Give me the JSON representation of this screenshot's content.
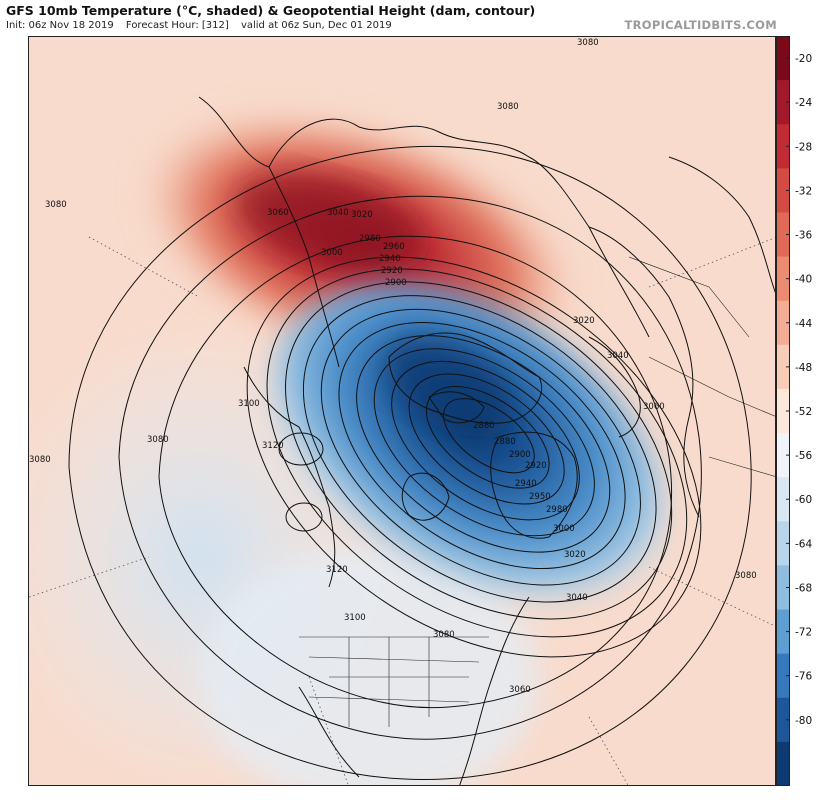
{
  "header": {
    "title": "GFS 10mb Temperature (°C, shaded) & Geopotential Height (dam, contour)",
    "init": "Init: 06z Nov 18 2019",
    "forecast_hour": "Forecast Hour: [312]",
    "valid": "valid at 06z Sun, Dec 01 2019",
    "brand": "TROPICALTIDBITS.COM"
  },
  "colorbar": {
    "ticks": [
      "-20",
      "-24",
      "-28",
      "-32",
      "-36",
      "-40",
      "-44",
      "-48",
      "-52",
      "-56",
      "-60",
      "-64",
      "-68",
      "-72",
      "-76",
      "-80"
    ],
    "colors": [
      "#7a0a1a",
      "#a3182a",
      "#c02b34",
      "#d44a45",
      "#e06a58",
      "#eb8b72",
      "#f3ad94",
      "#f8cdb8",
      "#fbe7dc",
      "#f0f3f7",
      "#d9e7f2",
      "#b8d5ea",
      "#8fbde0",
      "#5e9ed1",
      "#3579bc",
      "#1d5799",
      "#0d3a72"
    ]
  },
  "contours": {
    "labels": [
      "3080",
      "3080",
      "3060",
      "3040",
      "3020",
      "3000",
      "2980",
      "2960",
      "2940",
      "2920",
      "2900",
      "3020",
      "3040",
      "3060",
      "2880",
      "2880",
      "2900",
      "2920",
      "2940",
      "2950",
      "2980",
      "3000",
      "3020",
      "3040",
      "3060",
      "3080",
      "3100",
      "3120",
      "3120",
      "3100",
      "3080",
      "3080",
      "3080",
      "3080"
    ]
  }
}
